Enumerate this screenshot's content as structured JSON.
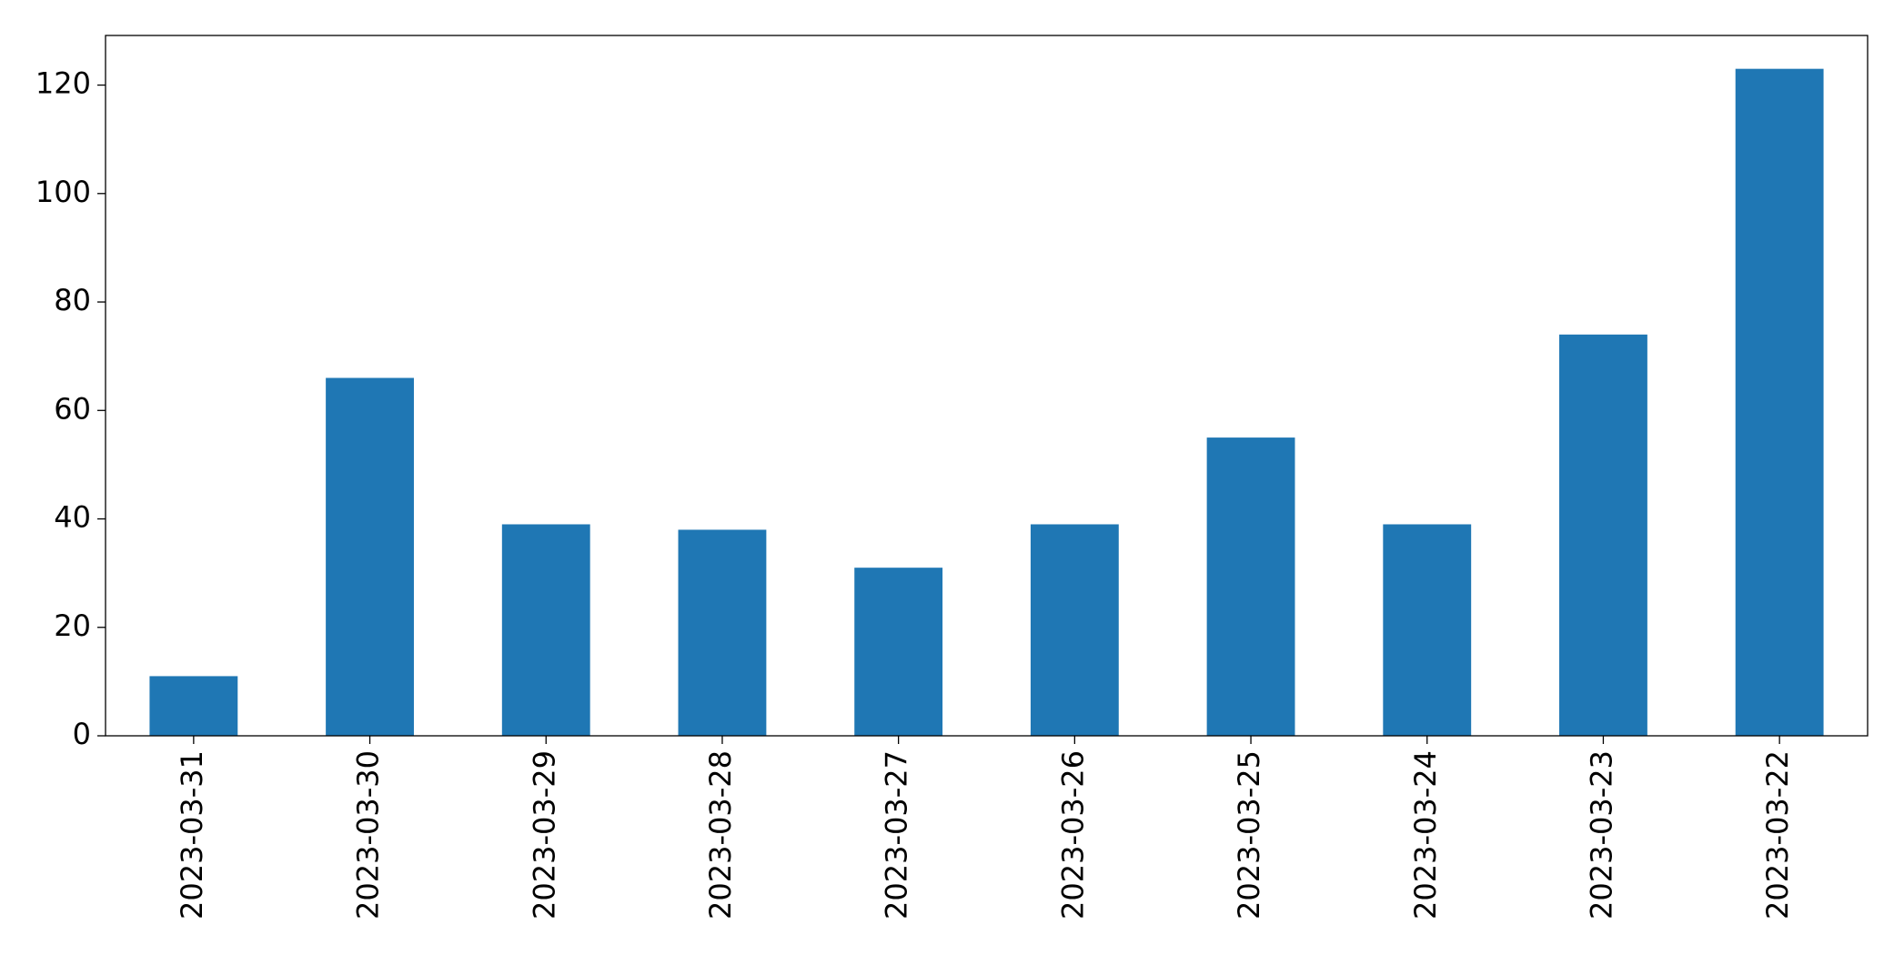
{
  "chart_data": {
    "type": "bar",
    "categories": [
      "2023-03-31",
      "2023-03-30",
      "2023-03-29",
      "2023-03-28",
      "2023-03-27",
      "2023-03-26",
      "2023-03-25",
      "2023-03-24",
      "2023-03-23",
      "2023-03-22"
    ],
    "values": [
      11,
      66,
      39,
      38,
      31,
      39,
      55,
      39,
      74,
      123
    ],
    "color": "#1f77b4",
    "ylim": [
      0,
      129.15
    ],
    "yticks": [
      0,
      20,
      40,
      60,
      80,
      100,
      120
    ],
    "grid": false
  }
}
